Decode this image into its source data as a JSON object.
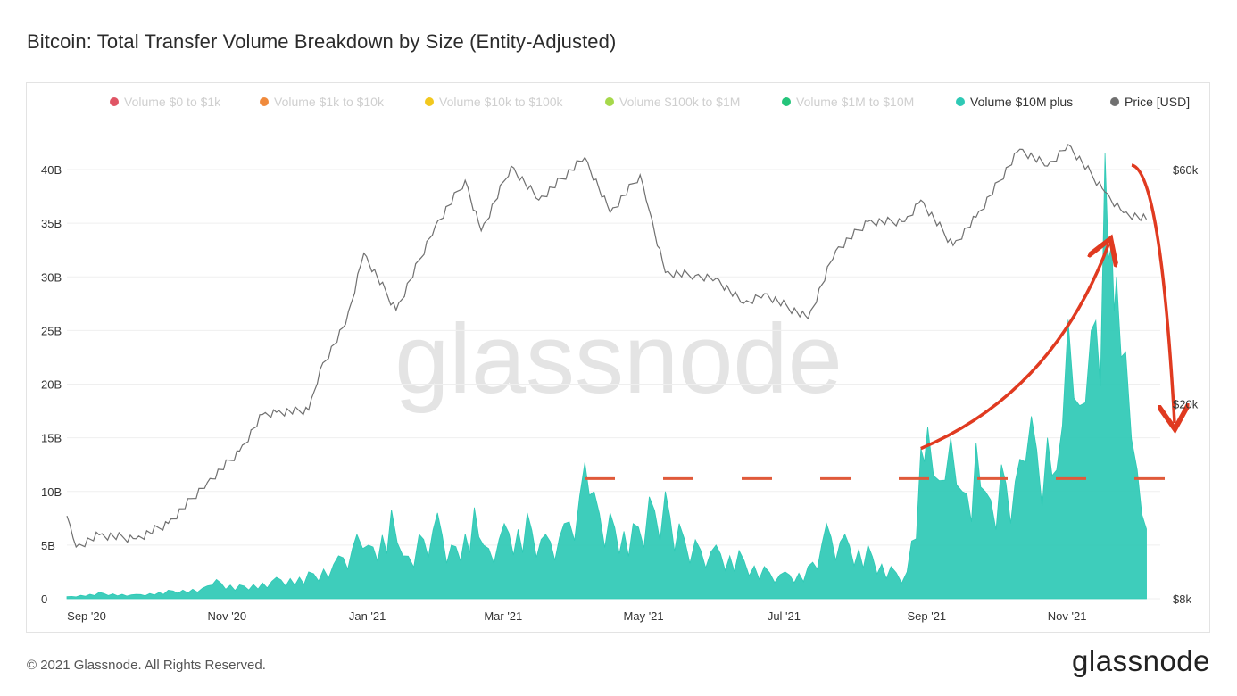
{
  "title": "Bitcoin: Total Transfer Volume Breakdown by Size (Entity-Adjusted)",
  "watermark": "glassnode",
  "footer": {
    "copyright": "© 2021 Glassnode. All Rights Reserved.",
    "logo": "glassnode"
  },
  "legend": [
    {
      "label": "Volume $0 to $1k",
      "color": "#e05565",
      "active": false
    },
    {
      "label": "Volume $1k to $10k",
      "color": "#f08a3c",
      "active": false
    },
    {
      "label": "Volume $10k to $100k",
      "color": "#f2c81e",
      "active": false
    },
    {
      "label": "Volume $100k to $1M",
      "color": "#a6d84a",
      "active": false
    },
    {
      "label": "Volume $1M to $10M",
      "color": "#24c47a",
      "active": false
    },
    {
      "label": "Volume $10M plus",
      "color": "#2ec9b5",
      "active": true
    },
    {
      "label": "Price [USD]",
      "color": "#707070",
      "active": true
    }
  ],
  "chart_data": {
    "type": "area",
    "x_ticks": [
      "Sep '20",
      "Nov '20",
      "Jan '21",
      "Mar '21",
      "May '21",
      "Jul '21",
      "Sep '21",
      "Nov '21"
    ],
    "y_ticks": [
      "0",
      "5B",
      "10B",
      "15B",
      "20B",
      "25B",
      "30B",
      "35B",
      "40B"
    ],
    "y_range": [
      0,
      42
    ],
    "y2_ticks": [
      "$8k",
      "$20k",
      "$60k"
    ],
    "y2_scale": "log",
    "y2_range": [
      8000,
      70000
    ],
    "x_range": [
      "2020-09-01",
      "2021-12-20"
    ],
    "series": [
      {
        "name": "Volume $10M plus",
        "unit": "B",
        "color": "#2ec9b5",
        "points": [
          [
            "2020-09-01",
            0.2
          ],
          [
            "2020-09-15",
            0.6
          ],
          [
            "2020-10-01",
            0.4
          ],
          [
            "2020-10-15",
            0.8
          ],
          [
            "2020-11-01",
            1.2
          ],
          [
            "2020-11-05",
            1.8
          ],
          [
            "2020-11-15",
            1.3
          ],
          [
            "2020-12-01",
            2.0
          ],
          [
            "2020-12-15",
            2.5
          ],
          [
            "2020-12-28",
            4.0
          ],
          [
            "2021-01-05",
            6.0
          ],
          [
            "2021-01-10",
            5.0
          ],
          [
            "2021-01-20",
            8.3
          ],
          [
            "2021-01-25",
            4.0
          ],
          [
            "2021-02-01",
            6.0
          ],
          [
            "2021-02-09",
            8.0
          ],
          [
            "2021-02-15",
            5.0
          ],
          [
            "2021-02-25",
            8.5
          ],
          [
            "2021-03-01",
            5.0
          ],
          [
            "2021-03-10",
            7.0
          ],
          [
            "2021-03-20",
            8.0
          ],
          [
            "2021-03-28",
            6.0
          ],
          [
            "2021-04-05",
            7.0
          ],
          [
            "2021-04-14",
            12.7
          ],
          [
            "2021-04-18",
            10.0
          ],
          [
            "2021-04-25",
            8.0
          ],
          [
            "2021-05-05",
            7.0
          ],
          [
            "2021-05-12",
            9.5
          ],
          [
            "2021-05-19",
            10.0
          ],
          [
            "2021-05-25",
            7.0
          ],
          [
            "2021-06-01",
            5.5
          ],
          [
            "2021-06-10",
            5.0
          ],
          [
            "2021-06-20",
            4.5
          ],
          [
            "2021-07-01",
            3.0
          ],
          [
            "2021-07-10",
            2.5
          ],
          [
            "2021-07-20",
            3.0
          ],
          [
            "2021-07-28",
            7.0
          ],
          [
            "2021-08-05",
            6.0
          ],
          [
            "2021-08-15",
            5.0
          ],
          [
            "2021-08-25",
            3.0
          ],
          [
            "2021-09-01",
            2.5
          ],
          [
            "2021-09-07",
            14.0
          ],
          [
            "2021-09-10",
            16.0
          ],
          [
            "2021-09-15",
            11.0
          ],
          [
            "2021-09-20",
            15.0
          ],
          [
            "2021-09-25",
            10.0
          ],
          [
            "2021-10-01",
            14.5
          ],
          [
            "2021-10-05",
            10.0
          ],
          [
            "2021-10-12",
            12.5
          ],
          [
            "2021-10-20",
            13.0
          ],
          [
            "2021-10-25",
            17.0
          ],
          [
            "2021-11-01",
            15.0
          ],
          [
            "2021-11-05",
            12.0
          ],
          [
            "2021-11-10",
            26.0
          ],
          [
            "2021-11-15",
            18.0
          ],
          [
            "2021-11-20",
            25.0
          ],
          [
            "2021-11-26",
            41.5
          ],
          [
            "2021-11-29",
            33.0
          ],
          [
            "2021-12-01",
            30.0
          ],
          [
            "2021-12-05",
            23.0
          ],
          [
            "2021-12-10",
            12.0
          ],
          [
            "2021-12-14",
            6.5
          ]
        ]
      },
      {
        "name": "Price [USD]",
        "unit": "USD",
        "color": "#707070",
        "points": [
          [
            "2020-09-01",
            11800
          ],
          [
            "2020-09-05",
            10200
          ],
          [
            "2020-09-15",
            10800
          ],
          [
            "2020-10-01",
            10600
          ],
          [
            "2020-10-15",
            11400
          ],
          [
            "2020-11-01",
            13800
          ],
          [
            "2020-11-15",
            16000
          ],
          [
            "2020-11-25",
            19000
          ],
          [
            "2020-12-01",
            19200
          ],
          [
            "2020-12-15",
            19400
          ],
          [
            "2020-12-20",
            23500
          ],
          [
            "2020-12-31",
            29000
          ],
          [
            "2021-01-08",
            40500
          ],
          [
            "2021-01-22",
            31000
          ],
          [
            "2021-02-08",
            46000
          ],
          [
            "2021-02-21",
            57000
          ],
          [
            "2021-02-28",
            45000
          ],
          [
            "2021-03-13",
            61000
          ],
          [
            "2021-03-25",
            52000
          ],
          [
            "2021-04-14",
            63500
          ],
          [
            "2021-04-25",
            49000
          ],
          [
            "2021-05-08",
            58500
          ],
          [
            "2021-05-12",
            49500
          ],
          [
            "2021-05-19",
            37000
          ],
          [
            "2021-06-01",
            36500
          ],
          [
            "2021-06-10",
            36000
          ],
          [
            "2021-06-22",
            32000
          ],
          [
            "2021-07-01",
            33500
          ],
          [
            "2021-07-20",
            29800
          ],
          [
            "2021-08-01",
            41000
          ],
          [
            "2021-08-15",
            47000
          ],
          [
            "2021-08-31",
            47000
          ],
          [
            "2021-09-07",
            52000
          ],
          [
            "2021-09-21",
            42000
          ],
          [
            "2021-10-01",
            48000
          ],
          [
            "2021-10-20",
            66000
          ],
          [
            "2021-11-01",
            61000
          ],
          [
            "2021-11-10",
            67500
          ],
          [
            "2021-11-26",
            54000
          ],
          [
            "2021-12-04",
            49000
          ],
          [
            "2021-12-14",
            47500
          ]
        ]
      }
    ],
    "annotations": [
      {
        "type": "dashed-line",
        "value": 11.2,
        "unit": "B",
        "color": "#e05a3a"
      },
      {
        "type": "arrow-up",
        "from": [
          "2021-09-07",
          14.0
        ],
        "to": [
          "2021-11-15",
          33.0
        ],
        "color": "#e03a20"
      },
      {
        "type": "arrow-down",
        "from": [
          "2021-11-29",
          40.5
        ],
        "to": [
          "2021-12-15",
          16.0
        ],
        "color": "#e03a20"
      }
    ]
  }
}
